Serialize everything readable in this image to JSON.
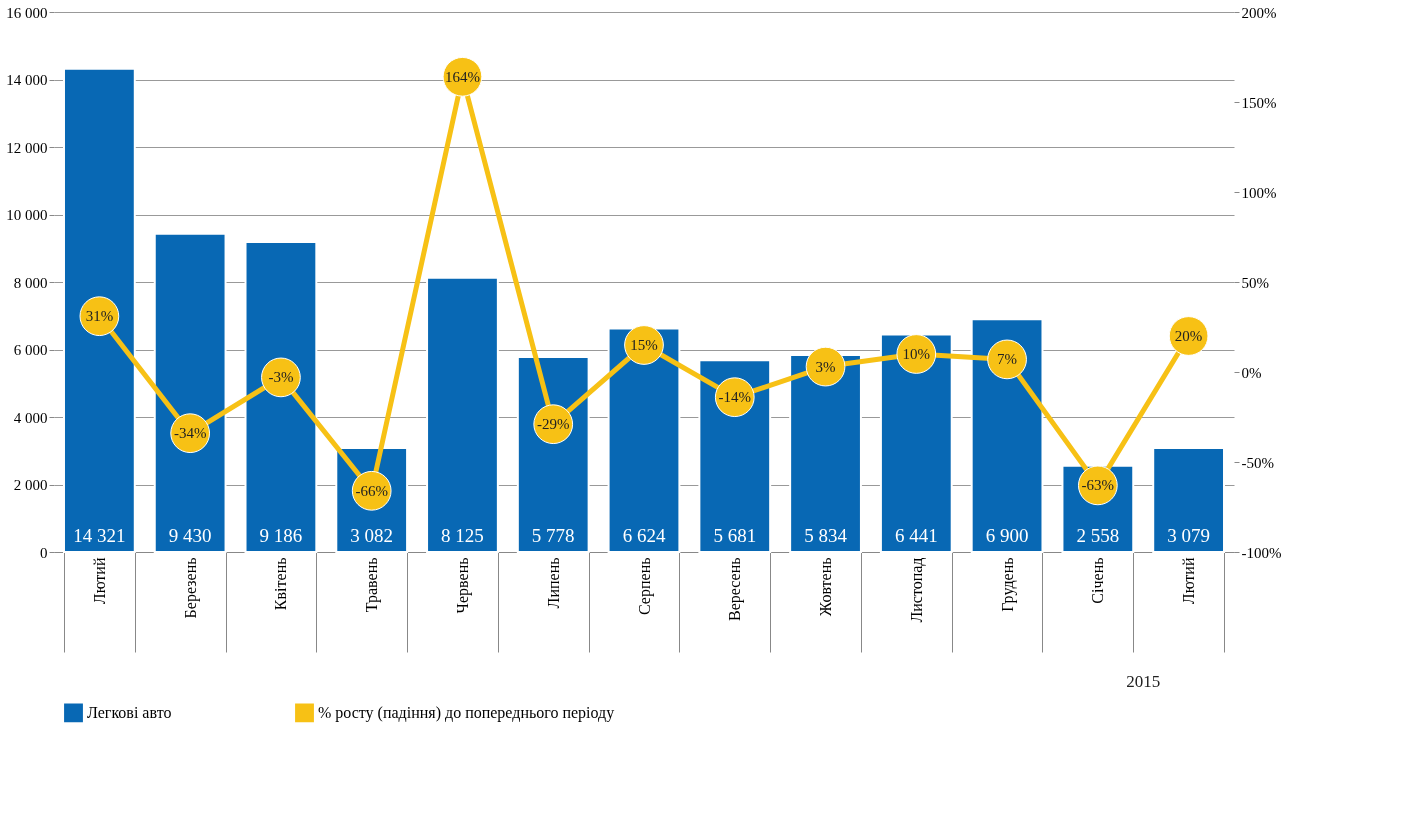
{
  "chart_data": {
    "type": "bar",
    "categories": [
      "Лютий",
      "Березень",
      "Квітень",
      "Травень",
      "Червень",
      "Липень",
      "Серпень",
      "Вересень",
      "Жовтень",
      "Листопад",
      "Грудень",
      "Січень",
      "Лютий"
    ],
    "series": [
      {
        "name": "Легкові авто",
        "color": "#0868b4",
        "values": [
          14321,
          9430,
          9186,
          3082,
          8125,
          5778,
          6624,
          5681,
          5834,
          6441,
          6900,
          2558,
          3079
        ],
        "value_labels": [
          "14 321",
          "9 430",
          "9 186",
          "3 082",
          "8 125",
          "5 778",
          "6 624",
          "5 681",
          "5 834",
          "6 441",
          "6 900",
          "2 558",
          "3 079"
        ]
      },
      {
        "name": "% росту (падіння) до попереднього періоду",
        "type": "line",
        "axis": "y2",
        "color": "#f7c115",
        "values": [
          31,
          -34,
          -3,
          -66,
          164,
          -29,
          15,
          -14,
          3,
          10,
          7,
          -63,
          20
        ],
        "value_labels": [
          "31%",
          "-34%",
          "-3%",
          "-66%",
          "164%",
          "-29%",
          "15%",
          "-14%",
          "3%",
          "10%",
          "7%",
          "-63%",
          "20%"
        ]
      }
    ],
    "ylim": [
      0,
      16000
    ],
    "yticks": [
      0,
      {
        "value": 2000,
        "label": "2 000"
      },
      {
        "value": 4000,
        "label": "4 000"
      },
      {
        "value": 6000,
        "label": "6 000"
      },
      {
        "value": 8000,
        "label": "8 000"
      },
      {
        "value": 10000,
        "label": "10 000"
      },
      {
        "value": 12000,
        "label": "12 000"
      },
      {
        "value": 14000,
        "label": "14 000"
      },
      {
        "value": 16000,
        "label": "16 000"
      }
    ],
    "y2lim": [
      -100,
      200
    ],
    "y2ticks": [
      {
        "value": -100,
        "label": "-100%"
      },
      {
        "value": -50,
        "label": "-50%"
      },
      {
        "value": 0,
        "label": "0%"
      },
      {
        "value": 50,
        "label": "50%"
      },
      {
        "value": 100,
        "label": "100%"
      },
      {
        "value": 150,
        "label": "150%"
      },
      {
        "value": 200,
        "label": "200%"
      }
    ],
    "grid": "y",
    "legend": "bottom",
    "marker": "circle",
    "annotations": [
      "2015"
    ]
  }
}
